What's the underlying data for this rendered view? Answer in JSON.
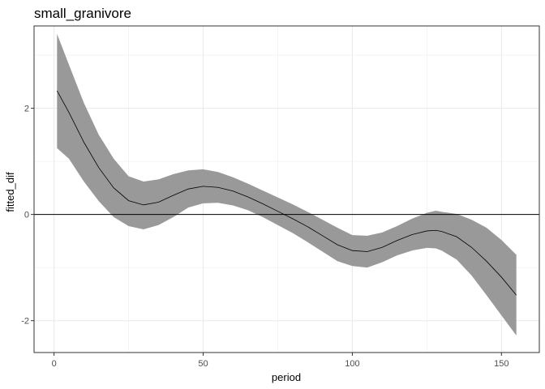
{
  "chart_data": {
    "type": "line",
    "title": "small_granivore",
    "xlabel": "period",
    "ylabel": "fitted_dif",
    "xlim": [
      -6.7,
      162.7
    ],
    "ylim": [
      -2.6,
      3.55
    ],
    "x_ticks": [
      0,
      50,
      100,
      150
    ],
    "y_ticks": [
      -2,
      0,
      2
    ],
    "x_minor_ticks": [
      25,
      75,
      125
    ],
    "y_minor_ticks": [
      -1,
      1,
      3
    ],
    "grid": true,
    "reference_line_y": 0,
    "colors": {
      "line": "#000000",
      "ribbon": "#999999",
      "grid": "#ebebeb",
      "panel_border": "#333333",
      "reference_line": "#000000"
    },
    "series": [
      {
        "x": [
          1,
          5,
          10,
          15,
          20,
          25,
          30,
          35,
          40,
          45,
          50,
          55,
          60,
          65,
          70,
          75,
          80,
          85,
          90,
          95,
          100,
          105,
          110,
          115,
          120,
          125,
          128,
          130,
          135,
          140,
          145,
          150,
          155
        ],
        "y": [
          2.33,
          1.92,
          1.36,
          0.88,
          0.5,
          0.26,
          0.18,
          0.23,
          0.36,
          0.48,
          0.53,
          0.51,
          0.44,
          0.33,
          0.2,
          0.06,
          -0.08,
          -0.23,
          -0.4,
          -0.57,
          -0.68,
          -0.7,
          -0.62,
          -0.49,
          -0.38,
          -0.31,
          -0.3,
          -0.32,
          -0.42,
          -0.62,
          -0.88,
          -1.18,
          -1.52
        ],
        "lower": [
          1.25,
          1.05,
          0.62,
          0.25,
          -0.05,
          -0.22,
          -0.28,
          -0.2,
          -0.05,
          0.13,
          0.21,
          0.22,
          0.17,
          0.08,
          -0.05,
          -0.2,
          -0.35,
          -0.52,
          -0.7,
          -0.88,
          -0.97,
          -1.0,
          -0.9,
          -0.77,
          -0.68,
          -0.63,
          -0.64,
          -0.68,
          -0.85,
          -1.15,
          -1.52,
          -1.9,
          -2.28
        ],
        "upper": [
          3.4,
          2.82,
          2.1,
          1.5,
          1.05,
          0.72,
          0.62,
          0.66,
          0.76,
          0.83,
          0.85,
          0.8,
          0.7,
          0.58,
          0.45,
          0.32,
          0.19,
          0.05,
          -0.1,
          -0.25,
          -0.39,
          -0.4,
          -0.34,
          -0.22,
          -0.08,
          0.03,
          0.07,
          0.05,
          0.01,
          -0.1,
          -0.25,
          -0.48,
          -0.76
        ]
      }
    ]
  }
}
